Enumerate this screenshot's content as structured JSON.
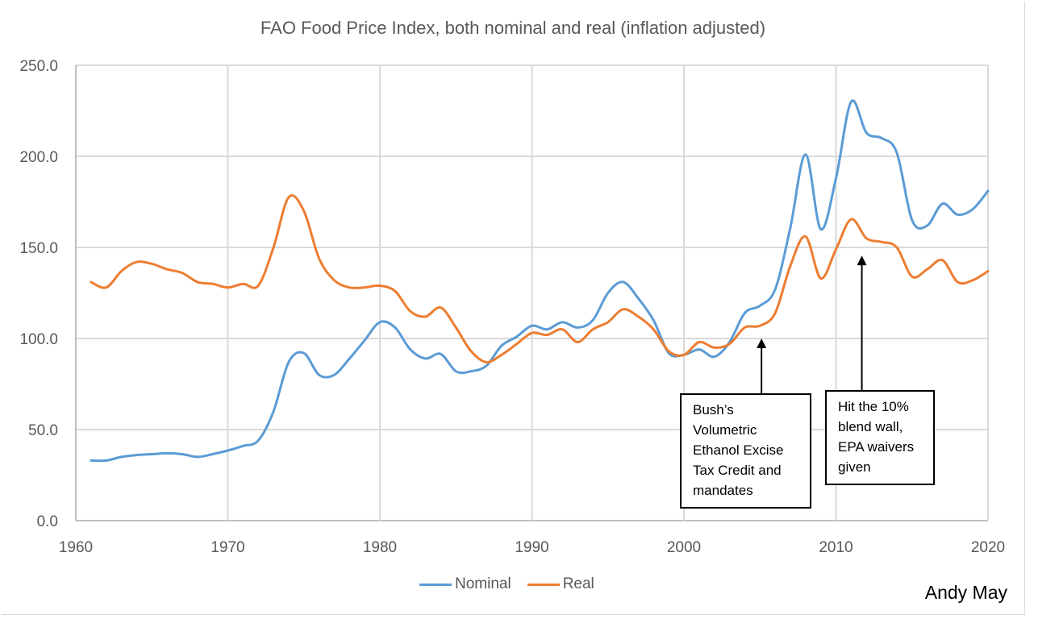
{
  "chart_data": {
    "type": "line",
    "title": "FAO Food Price Index, both nominal and real (inflation adjusted)",
    "xlabel": "",
    "ylabel": "",
    "xlim": [
      1960,
      2020
    ],
    "ylim": [
      0,
      250
    ],
    "grid": true,
    "x_ticks": [
      "1960",
      "1970",
      "1980",
      "1990",
      "2000",
      "2010",
      "2020"
    ],
    "y_ticks": [
      "0.0",
      "50.0",
      "100.0",
      "150.0",
      "200.0",
      "250.0"
    ],
    "legend_position": "bottom-center",
    "x": [
      1961,
      1962,
      1963,
      1964,
      1965,
      1966,
      1967,
      1968,
      1969,
      1970,
      1971,
      1972,
      1973,
      1974,
      1975,
      1976,
      1977,
      1978,
      1979,
      1980,
      1981,
      1982,
      1983,
      1984,
      1985,
      1986,
      1987,
      1988,
      1989,
      1990,
      1991,
      1992,
      1993,
      1994,
      1995,
      1996,
      1997,
      1998,
      1999,
      2000,
      2001,
      2002,
      2003,
      2004,
      2005,
      2006,
      2007,
      2008,
      2009,
      2010,
      2011,
      2012,
      2013,
      2014,
      2015,
      2016,
      2017,
      2018,
      2019,
      2020
    ],
    "series": [
      {
        "name": "Nominal",
        "color": "#5b9bd5",
        "values": [
          33,
          33,
          35,
          36,
          36.5,
          37,
          36.5,
          35,
          36.5,
          38.5,
          41,
          44,
          60,
          87,
          92,
          80,
          80,
          89,
          99,
          109,
          106,
          94,
          89,
          91.5,
          82,
          82,
          85,
          96,
          101,
          107,
          105,
          109,
          106,
          110,
          125,
          131,
          122,
          110,
          92,
          91,
          94,
          90,
          98,
          114,
          118,
          127,
          161,
          201,
          160,
          188,
          230,
          213,
          210,
          202,
          165,
          162,
          174,
          168,
          171,
          181
        ]
      },
      {
        "name": "Real",
        "color": "#ed7d31",
        "values": [
          131,
          128,
          137,
          142,
          141,
          138,
          136,
          131,
          130,
          128,
          130,
          129,
          150,
          177.5,
          170,
          144,
          132,
          128,
          128,
          129,
          126,
          115,
          112,
          117,
          106,
          93,
          87,
          91,
          97,
          103,
          102,
          105,
          98,
          105,
          109,
          116,
          112,
          105,
          93,
          91,
          98,
          95,
          97,
          106,
          107,
          114,
          140,
          156,
          133,
          149,
          165.5,
          155,
          153,
          150,
          134,
          138,
          143,
          131,
          132,
          137
        ]
      }
    ],
    "annotations": [
      {
        "text": "Bush’s\nVolumetric\nEthanol Excise\nTax Credit and\nmandates",
        "arrow_x": 2005.1,
        "arrow_y": 100
      },
      {
        "text": "Hit the 10%\nblend wall,\nEPA waivers\ngiven",
        "arrow_x": 2011.7,
        "arrow_y": 145.5
      }
    ]
  },
  "legend": {
    "items": [
      {
        "label": "Nominal",
        "color": "#5b9bd5"
      },
      {
        "label": "Real",
        "color": "#ed7d31"
      }
    ]
  },
  "credit": "Andy May"
}
